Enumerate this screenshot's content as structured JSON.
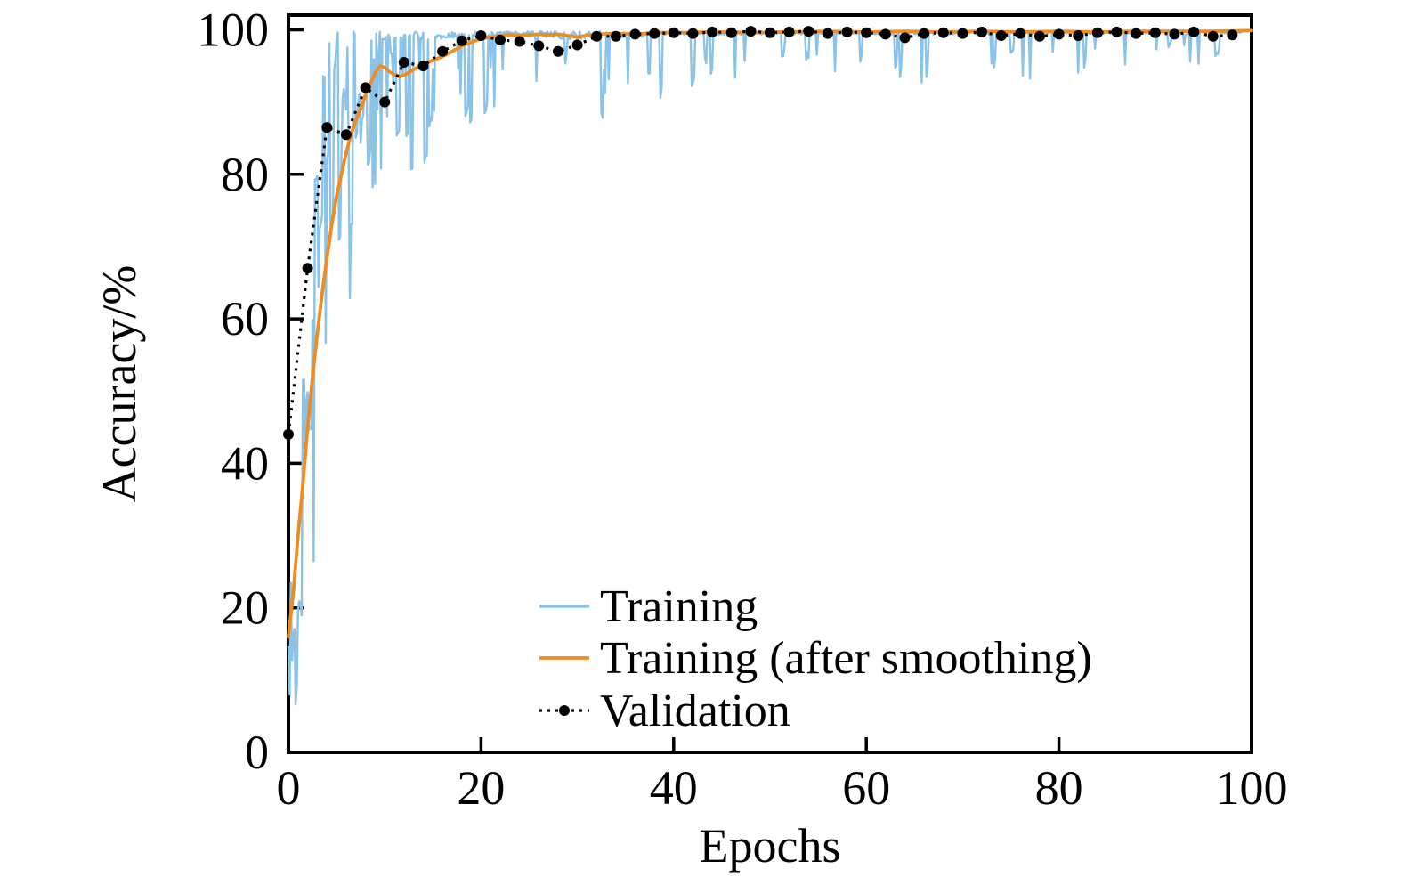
{
  "figure": {
    "background": "#ffffff",
    "axis_color": "#000000"
  },
  "chart_data": {
    "type": "line",
    "title": "",
    "xlabel": "Epochs",
    "ylabel": "Accuracy/%",
    "xlim": [
      0,
      100
    ],
    "ylim": [
      0,
      102
    ],
    "xticks": [
      0,
      20,
      40,
      60,
      80,
      100
    ],
    "yticks": [
      0,
      20,
      40,
      60,
      80,
      100
    ],
    "grid": false,
    "legend_position": "lower center, no frame",
    "series": [
      {
        "name": "Training",
        "color": "#8AC3EA",
        "style": "solid",
        "line_width": 2.4,
        "description": "per-iteration training accuracy, highly noisy band rising from ~3% to ~100% by epoch 20, then flat near 100% with sporadic downward spikes",
        "noise_seed": 42,
        "samples_per_epoch": 8,
        "x_end": 99,
        "envelope": [
          [
            0,
            2,
            30
          ],
          [
            1,
            8,
            52
          ],
          [
            2,
            15,
            70
          ],
          [
            3,
            25,
            87
          ],
          [
            4,
            38,
            98
          ],
          [
            5,
            48,
            100
          ],
          [
            6,
            58,
            100
          ],
          [
            7,
            66,
            100
          ],
          [
            8,
            72,
            100
          ],
          [
            10,
            78,
            100
          ],
          [
            12,
            81,
            100
          ],
          [
            14,
            80,
            100
          ],
          [
            16,
            83,
            100
          ],
          [
            18,
            86,
            100
          ],
          [
            20,
            88,
            100
          ],
          [
            24,
            90,
            100
          ],
          [
            28,
            84,
            100
          ],
          [
            30,
            78,
            100
          ],
          [
            32,
            88,
            100
          ],
          [
            36,
            85,
            100
          ],
          [
            40,
            91,
            100
          ],
          [
            50,
            92,
            100
          ],
          [
            60,
            93,
            100
          ],
          [
            70,
            92,
            100
          ],
          [
            80,
            93,
            100
          ],
          [
            90,
            94,
            100
          ],
          [
            99,
            95,
            100
          ]
        ],
        "dip_probability": [
          [
            0,
            1.0
          ],
          [
            3,
            0.95
          ],
          [
            5,
            0.85
          ],
          [
            7,
            0.7
          ],
          [
            9,
            0.55
          ],
          [
            12,
            0.4
          ],
          [
            15,
            0.3
          ],
          [
            18,
            0.2
          ],
          [
            22,
            0.14
          ],
          [
            28,
            0.12
          ],
          [
            35,
            0.1
          ],
          [
            45,
            0.08
          ],
          [
            99,
            0.08
          ]
        ]
      },
      {
        "name": "Training (after smoothing)",
        "color": "#F08C1E",
        "style": "solid",
        "line_width": 3.8,
        "points": [
          [
            0,
            16
          ],
          [
            0.5,
            22
          ],
          [
            1,
            30
          ],
          [
            1.5,
            37
          ],
          [
            2,
            45
          ],
          [
            2.5,
            52
          ],
          [
            3,
            58
          ],
          [
            3.5,
            63.5
          ],
          [
            4,
            68.5
          ],
          [
            4.5,
            73
          ],
          [
            5,
            77
          ],
          [
            5.5,
            80
          ],
          [
            6,
            83
          ],
          [
            6.5,
            85.5
          ],
          [
            7,
            87.5
          ],
          [
            7.5,
            89
          ],
          [
            8,
            91
          ],
          [
            8.5,
            92.5
          ],
          [
            9,
            94
          ],
          [
            9.5,
            95
          ],
          [
            10,
            94.8
          ],
          [
            10.5,
            94.2
          ],
          [
            11,
            93.8
          ],
          [
            11.5,
            93.5
          ],
          [
            12,
            93.7
          ],
          [
            12.5,
            94.1
          ],
          [
            13,
            94.5
          ],
          [
            14,
            95.2
          ],
          [
            15,
            95.8
          ],
          [
            16,
            96.3
          ],
          [
            17,
            97
          ],
          [
            18,
            97.8
          ],
          [
            19,
            98.3
          ],
          [
            20,
            98.8
          ],
          [
            21,
            99
          ],
          [
            22,
            99.2
          ],
          [
            23,
            99.3
          ],
          [
            24,
            99.2
          ],
          [
            25,
            99.3
          ],
          [
            26,
            99.4
          ],
          [
            27,
            99.3
          ],
          [
            28,
            99.4
          ],
          [
            29,
            99.2
          ],
          [
            30,
            99
          ],
          [
            31,
            99.2
          ],
          [
            32,
            99.4
          ],
          [
            34,
            99.5
          ],
          [
            36,
            99.4
          ],
          [
            38,
            99.6
          ],
          [
            40,
            99.6
          ],
          [
            44,
            99.7
          ],
          [
            48,
            99.6
          ],
          [
            52,
            99.7
          ],
          [
            56,
            99.8
          ],
          [
            60,
            99.7
          ],
          [
            64,
            99.8
          ],
          [
            68,
            99.7
          ],
          [
            72,
            99.8
          ],
          [
            76,
            99.7
          ],
          [
            80,
            99.8
          ],
          [
            84,
            99.7
          ],
          [
            88,
            99.8
          ],
          [
            92,
            99.8
          ],
          [
            96,
            99.8
          ],
          [
            100,
            99.9
          ]
        ]
      },
      {
        "name": "Validation",
        "color": "#000000",
        "style": "dotted",
        "line_width": 3.2,
        "marker": "circle",
        "marker_radius": 6,
        "points": [
          [
            0,
            44
          ],
          [
            2,
            67
          ],
          [
            4,
            86.5
          ],
          [
            6,
            85.5
          ],
          [
            8,
            92
          ],
          [
            10,
            90
          ],
          [
            12,
            95.5
          ],
          [
            14,
            95
          ],
          [
            16,
            97
          ],
          [
            18,
            98.5
          ],
          [
            20,
            99.2
          ],
          [
            22,
            98.6
          ],
          [
            24,
            98.4
          ],
          [
            26,
            97.8
          ],
          [
            28,
            97
          ],
          [
            30,
            97.9
          ],
          [
            32,
            99.1
          ],
          [
            34,
            99.1
          ],
          [
            36,
            99.4
          ],
          [
            38,
            99.5
          ],
          [
            40,
            99.6
          ],
          [
            42,
            99.5
          ],
          [
            44,
            99.7
          ],
          [
            46,
            99.6
          ],
          [
            48,
            99.8
          ],
          [
            50,
            99.6
          ],
          [
            52,
            99.7
          ],
          [
            54,
            99.8
          ],
          [
            56,
            99.5
          ],
          [
            58,
            99.7
          ],
          [
            60,
            99.6
          ],
          [
            62,
            99.4
          ],
          [
            64,
            98.9
          ],
          [
            66,
            99.5
          ],
          [
            68,
            99.6
          ],
          [
            70,
            99.5
          ],
          [
            72,
            99.7
          ],
          [
            74,
            99.2
          ],
          [
            76,
            99.5
          ],
          [
            78,
            99.1
          ],
          [
            80,
            99.4
          ],
          [
            82,
            99.2
          ],
          [
            84,
            99.6
          ],
          [
            86,
            99.7
          ],
          [
            88,
            99.5
          ],
          [
            90,
            99.6
          ],
          [
            92,
            99.4
          ],
          [
            94,
            99.7
          ],
          [
            96,
            99.1
          ],
          [
            98,
            99.3
          ]
        ]
      }
    ]
  }
}
